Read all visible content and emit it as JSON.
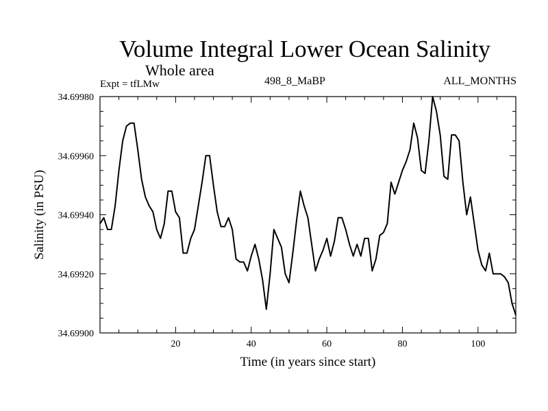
{
  "chart_data": {
    "type": "line",
    "title": "Volume Integral Lower Ocean Salinity",
    "subtitle": "Whole area",
    "annotations": {
      "left": "Expt = tfLMw",
      "center": "498_8_MaBP",
      "right": "ALL_MONTHS"
    },
    "xlabel": "Time (in years since start)",
    "ylabel": "Salinity (in PSU)",
    "xlim": [
      0,
      110
    ],
    "ylim": [
      34.699,
      34.6998
    ],
    "xticks": [
      20,
      40,
      60,
      80,
      100
    ],
    "xtick_labels": [
      "20",
      "40",
      "60",
      "80",
      "100"
    ],
    "yticks": [
      34.699,
      34.6992,
      34.6994,
      34.6996,
      34.6998
    ],
    "ytick_labels": [
      "34.69900",
      "34.69920",
      "34.69940",
      "34.69960",
      "34.69980"
    ],
    "grid": false,
    "series": [
      {
        "name": "salinity",
        "x": [
          0,
          1,
          2,
          3,
          4,
          5,
          6,
          7,
          8,
          9,
          10,
          11,
          12,
          13,
          14,
          15,
          16,
          17,
          18,
          19,
          20,
          21,
          22,
          23,
          24,
          25,
          26,
          27,
          28,
          29,
          30,
          31,
          32,
          33,
          34,
          35,
          36,
          37,
          38,
          39,
          40,
          41,
          42,
          43,
          44,
          45,
          46,
          47,
          48,
          49,
          50,
          51,
          52,
          53,
          54,
          55,
          56,
          57,
          58,
          59,
          60,
          61,
          62,
          63,
          64,
          65,
          66,
          67,
          68,
          69,
          70,
          71,
          72,
          73,
          74,
          75,
          76,
          77,
          78,
          79,
          80,
          81,
          82,
          83,
          84,
          85,
          86,
          87,
          88,
          89,
          90,
          91,
          92,
          93,
          94,
          95,
          96,
          97,
          98,
          99,
          100,
          101,
          102,
          103,
          104,
          105,
          106,
          107,
          108,
          109,
          110
        ],
        "values": [
          34.69937,
          34.69939,
          34.69935,
          34.69935,
          34.69943,
          34.69955,
          34.69965,
          34.6997,
          34.69971,
          34.69971,
          34.69962,
          34.69952,
          34.69946,
          34.69943,
          34.69941,
          34.69935,
          34.69932,
          34.69937,
          34.69948,
          34.69948,
          34.69941,
          34.69939,
          34.69927,
          34.69927,
          34.69932,
          34.69935,
          34.69943,
          34.69951,
          34.6996,
          34.6996,
          34.6995,
          34.69941,
          34.69936,
          34.69936,
          34.69939,
          34.69935,
          34.69925,
          34.69924,
          34.69924,
          34.69921,
          34.69926,
          34.6993,
          34.69925,
          34.69918,
          34.69908,
          34.6992,
          34.69935,
          34.69932,
          34.69929,
          34.6992,
          34.69917,
          34.69927,
          34.69938,
          34.69948,
          34.69943,
          34.69939,
          34.6993,
          34.69921,
          34.69925,
          34.69928,
          34.69932,
          34.69926,
          34.69931,
          34.69939,
          34.69939,
          34.69935,
          34.6993,
          34.69926,
          34.6993,
          34.69926,
          34.69932,
          34.69932,
          34.69921,
          34.69925,
          34.69933,
          34.69934,
          34.69937,
          34.69951,
          34.69947,
          34.69951,
          34.69955,
          34.69958,
          34.69962,
          34.69971,
          34.69966,
          34.69955,
          34.69954,
          34.69965,
          34.6998,
          34.69975,
          34.69967,
          34.69953,
          34.69952,
          34.69967,
          34.69967,
          34.69965,
          34.69951,
          34.6994,
          34.69946,
          34.69937,
          34.69928,
          34.69923,
          34.69921,
          34.69927,
          34.6992,
          34.6992,
          34.6992,
          34.69919,
          34.69917,
          34.6991,
          34.69906
        ]
      }
    ]
  }
}
